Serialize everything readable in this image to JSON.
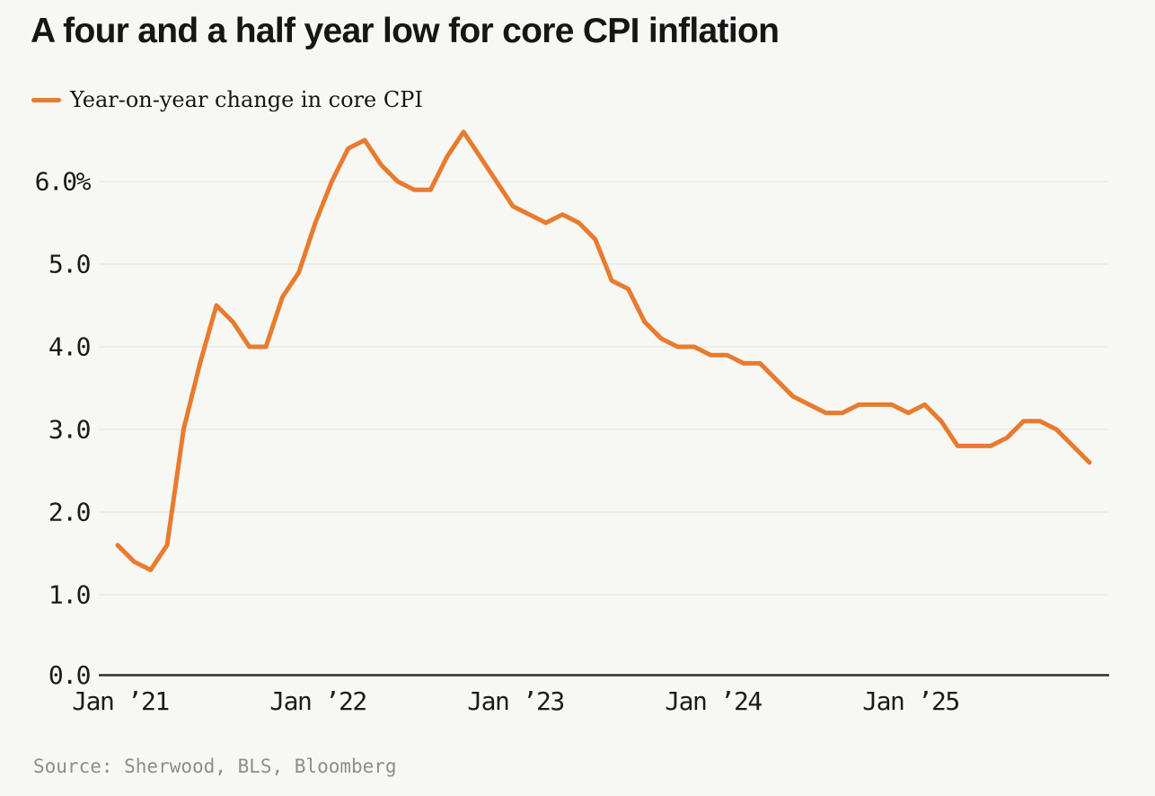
{
  "header": {
    "title": "A four and a half year low for core CPI inflation",
    "legend": {
      "label": "Year-on-year change in core CPI",
      "swatch_color": "#E87B2E"
    }
  },
  "source": "Source: Sherwood, BLS, Bloomberg",
  "colors": {
    "background": "#F7F7F4",
    "line": "#E87B2E",
    "grid": "#E6E6E3",
    "axis": "#2F2F2F",
    "text": "#1B1B1B",
    "muted": "#8D8D8D"
  },
  "chart_data": {
    "type": "line",
    "title": "A four and a half year low for core CPI inflation",
    "series_name": "Year-on-year change in core CPI",
    "unit": "%",
    "grid": true,
    "legend_position": "top-left",
    "ylim": [
      0,
      6.8
    ],
    "y_ticks": [
      {
        "value": 6.0,
        "label": "6.0%"
      },
      {
        "value": 5.0,
        "label": "5.0"
      },
      {
        "value": 4.0,
        "label": "4.0"
      },
      {
        "value": 3.0,
        "label": "3.0"
      },
      {
        "value": 2.0,
        "label": "2.0"
      },
      {
        "value": 1.0,
        "label": "1.0"
      },
      {
        "value": 0.0,
        "label": "0.0"
      }
    ],
    "x_ticks": [
      "Jan ’21",
      "Jan ’22",
      "Jan ’23",
      "Jan ’24",
      "Jan ’25"
    ],
    "x": [
      "Dec ’20",
      "Jan ’21",
      "Feb ’21",
      "Mar ’21",
      "Apr ’21",
      "May ’21",
      "Jun ’21",
      "Jul ’21",
      "Aug ’21",
      "Sep ’21",
      "Oct ’21",
      "Nov ’21",
      "Dec ’21",
      "Jan ’22",
      "Feb ’22",
      "Mar ’22",
      "Apr ’22",
      "May ’22",
      "Jun ’22",
      "Jul ’22",
      "Aug ’22",
      "Sep ’22",
      "Oct ’22",
      "Nov ’22",
      "Dec ’22",
      "Jan ’23",
      "Feb ’23",
      "Mar ’23",
      "Apr ’23",
      "May ’23",
      "Jun ’23",
      "Jul ’23",
      "Aug ’23",
      "Sep ’23",
      "Oct ’23",
      "Nov ’23",
      "Dec ’23",
      "Jan ’24",
      "Feb ’24",
      "Mar ’24",
      "Apr ’24",
      "May ’24",
      "Jun ’24",
      "Jul ’24",
      "Aug ’24",
      "Sep ’24",
      "Oct ’24",
      "Nov ’24",
      "Dec ’24",
      "Jan ’25",
      "Feb ’25",
      "Mar ’25",
      "Apr ’25",
      "May ’25",
      "Jun ’25",
      "Jul ’25",
      "Aug ’25",
      "Sep ’25",
      "Oct ’25",
      "Nov ’25"
    ],
    "values": [
      1.6,
      1.4,
      1.3,
      1.6,
      3.0,
      3.8,
      4.5,
      4.3,
      4.0,
      4.0,
      4.6,
      4.9,
      5.5,
      6.0,
      6.4,
      6.5,
      6.2,
      6.0,
      5.9,
      5.9,
      6.3,
      6.6,
      6.3,
      6.0,
      5.7,
      5.6,
      5.5,
      5.6,
      5.5,
      5.3,
      4.8,
      4.7,
      4.3,
      4.1,
      4.0,
      4.0,
      3.9,
      3.9,
      3.8,
      3.8,
      3.6,
      3.4,
      3.3,
      3.2,
      3.2,
      3.3,
      3.3,
      3.3,
      3.2,
      3.3,
      3.1,
      2.8,
      2.8,
      2.8,
      2.9,
      3.1,
      3.1,
      3.0,
      null,
      2.6
    ]
  }
}
